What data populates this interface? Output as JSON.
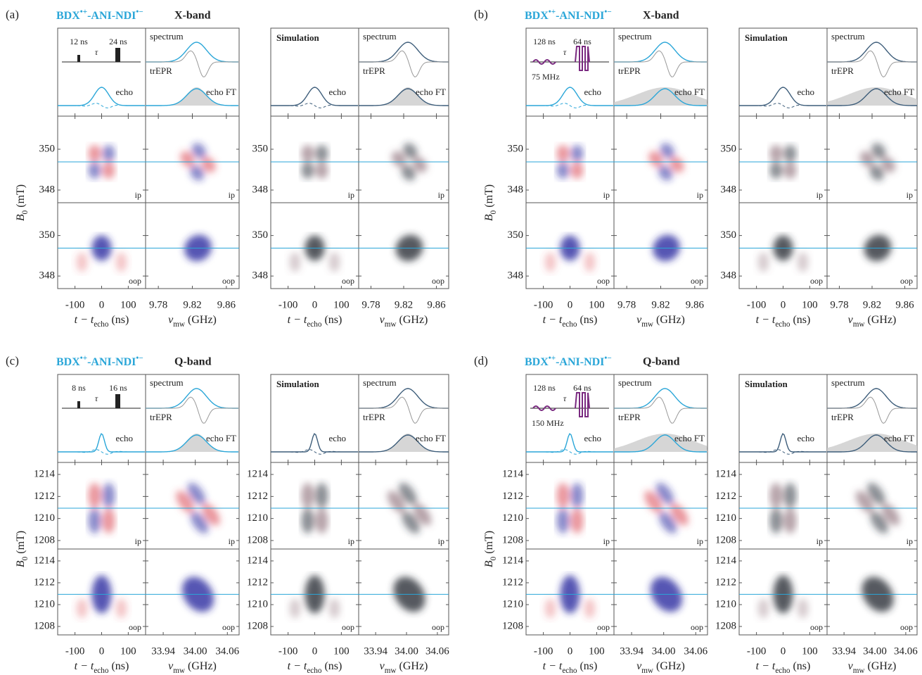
{
  "sample": [
    "BDX",
    "•+",
    "-ANI-NDI",
    "•−"
  ],
  "axes": {
    "field": [
      "B",
      "0",
      " (mT)"
    ],
    "time": [
      "t − t",
      "echo",
      " (ns)"
    ],
    "freq": [
      "ν",
      "mw",
      " (GHz)"
    ]
  },
  "labels": {
    "spectrum": "spectrum",
    "trepr": "trEPR",
    "echo": "echo",
    "echo_ft": "echo FT",
    "simulation": "Simulation",
    "ip": "ip",
    "oop": "oop"
  },
  "panels": [
    {
      "label": "(a)",
      "band": "X-band",
      "pulse": [
        "12 ns",
        "24 ns",
        "τ"
      ],
      "field": {
        "ylim": [
          347.38,
          351.62
        ],
        "yticks": [
          348,
          350
        ],
        "line": 349.38
      },
      "time": {
        "xlim": [
          -165,
          165
        ],
        "xticks": [
          -100,
          0,
          100
        ]
      },
      "freq": {
        "xlim": [
          9.765,
          9.875
        ],
        "xticks": [
          9.78,
          9.82,
          9.86
        ]
      }
    },
    {
      "label": "(b)",
      "band": "X-band",
      "pulse": [
        "128 ns",
        "64 ns",
        "τ",
        "75 MHz"
      ],
      "field": {
        "ylim": [
          347.38,
          351.62
        ],
        "yticks": [
          348,
          350
        ],
        "line": 349.38
      },
      "time": {
        "xlim": [
          -165,
          165
        ],
        "xticks": [
          -100,
          0,
          100
        ]
      },
      "freq": {
        "xlim": [
          9.765,
          9.875
        ],
        "xticks": [
          9.78,
          9.82,
          9.86
        ]
      }
    },
    {
      "label": "(c)",
      "band": "Q-band",
      "pulse": [
        "8 ns",
        "16 ns",
        "τ"
      ],
      "field": {
        "ylim": [
          1207.23,
          1215.09
        ],
        "yticks": [
          1208,
          1210,
          1212,
          1214
        ],
        "line": 1210.94
      },
      "time": {
        "xlim": [
          -165,
          165
        ],
        "xticks": [
          -100,
          0,
          100
        ]
      },
      "freq": {
        "xlim": [
          33.907,
          34.082
        ],
        "xticks": [
          33.94,
          {
            "value": 34,
            "label": "34.00"
          },
          34.06
        ]
      }
    },
    {
      "label": "(d)",
      "band": "Q-band",
      "pulse": [
        "128 ns",
        "64 ns",
        "τ",
        "150 MHz"
      ],
      "field": {
        "ylim": [
          1207.23,
          1215.09
        ],
        "yticks": [
          1208,
          1210,
          1212,
          1214
        ],
        "line": 1210.94
      },
      "time": {
        "xlim": [
          -165,
          165
        ],
        "xticks": [
          -100,
          0,
          100
        ]
      },
      "freq": {
        "xlim": [
          33.907,
          34.082
        ],
        "xticks": [
          33.94,
          {
            "value": 34,
            "label": "34.00"
          },
          34.06
        ]
      }
    }
  ]
}
